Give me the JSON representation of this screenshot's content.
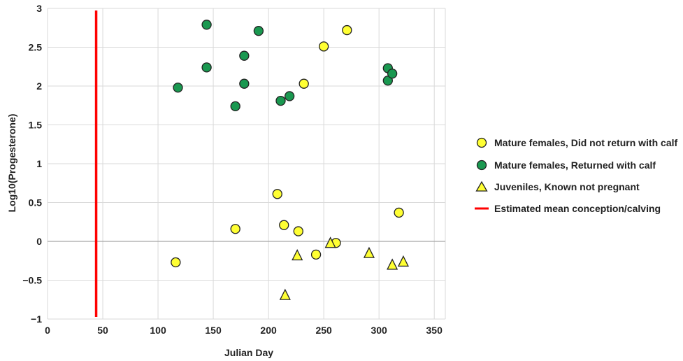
{
  "chart_data": {
    "type": "scatter",
    "title": "",
    "xlabel": "Julian Day",
    "ylabel": "Log10(Progesterone)",
    "xlim": [
      0,
      360
    ],
    "ylim": [
      -1,
      3
    ],
    "x_ticks": [
      "0",
      "50",
      "100",
      "150",
      "200",
      "250",
      "300",
      "350"
    ],
    "y_ticks": [
      "3",
      "2.5",
      "2",
      "1.5",
      "1",
      "0.5",
      "0",
      "−0.5",
      "−1"
    ],
    "grid": true,
    "legend_position": "right",
    "series": [
      {
        "name": "Mature females, Did not return with calf",
        "marker": "circle",
        "color": "#FFFF33",
        "points": [
          [
            116,
            -0.27
          ],
          [
            170,
            0.16
          ],
          [
            208,
            0.61
          ],
          [
            214,
            0.21
          ],
          [
            227,
            0.13
          ],
          [
            232,
            2.03
          ],
          [
            243,
            -0.17
          ],
          [
            250,
            2.51
          ],
          [
            261,
            -0.02
          ],
          [
            271,
            2.72
          ],
          [
            318,
            0.37
          ]
        ]
      },
      {
        "name": "Mature females, Returned with calf",
        "marker": "circle",
        "color": "#1A9850",
        "points": [
          [
            118,
            1.98
          ],
          [
            144,
            2.79
          ],
          [
            144,
            2.24
          ],
          [
            170,
            1.74
          ],
          [
            178,
            2.39
          ],
          [
            178,
            2.03
          ],
          [
            191,
            2.71
          ],
          [
            211,
            1.81
          ],
          [
            219,
            1.87
          ],
          [
            308,
            2.23
          ],
          [
            308,
            2.07
          ],
          [
            312,
            2.16
          ]
        ]
      },
      {
        "name": "Juveniles, Known not pregnant",
        "marker": "triangle",
        "color": "#FFFF33",
        "points": [
          [
            215,
            -0.69
          ],
          [
            226,
            -0.18
          ],
          [
            256,
            -0.02
          ],
          [
            291,
            -0.15
          ],
          [
            312,
            -0.3
          ],
          [
            322,
            -0.26
          ]
        ]
      }
    ],
    "reference_line": {
      "name": "Estimated mean conception/calving",
      "orientation": "vertical",
      "x": 44,
      "color": "#FF0000"
    }
  }
}
